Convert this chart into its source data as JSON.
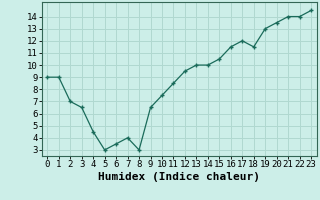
{
  "x": [
    0,
    1,
    2,
    3,
    4,
    5,
    6,
    7,
    8,
    9,
    10,
    11,
    12,
    13,
    14,
    15,
    16,
    17,
    18,
    19,
    20,
    21,
    22,
    23
  ],
  "y": [
    9.0,
    9.0,
    7.0,
    6.5,
    4.5,
    3.0,
    3.5,
    4.0,
    3.0,
    6.5,
    7.5,
    8.5,
    9.5,
    10.0,
    10.0,
    10.5,
    11.5,
    12.0,
    11.5,
    13.0,
    13.5,
    14.0,
    14.0,
    14.5
  ],
  "line_color": "#1a6b5a",
  "marker_color": "#1a6b5a",
  "bg_color": "#cceee8",
  "grid_color": "#b0d8d0",
  "xlabel": "Humidex (Indice chaleur)",
  "xlabel_fontsize": 8,
  "yticks": [
    3,
    4,
    5,
    6,
    7,
    8,
    9,
    10,
    11,
    12,
    13,
    14
  ],
  "ylim": [
    2.5,
    15.2
  ],
  "xlim": [
    -0.5,
    23.5
  ],
  "tick_fontsize": 6.5
}
